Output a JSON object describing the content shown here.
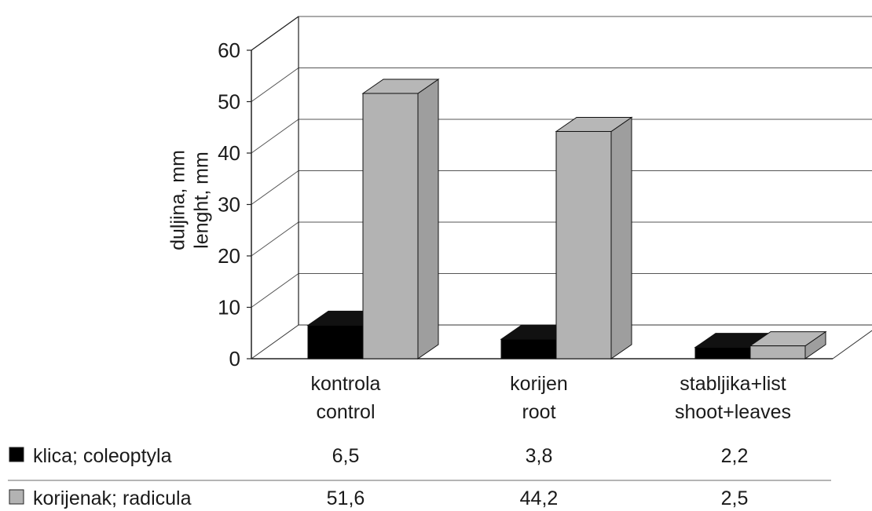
{
  "chart_data": {
    "type": "bar",
    "three_d": true,
    "ylabel": [
      "duljina, mm",
      "lenght, mm"
    ],
    "ylim": [
      0,
      60
    ],
    "yticks": [
      0,
      10,
      20,
      30,
      40,
      50,
      60
    ],
    "grid": true,
    "legend": "data-table-below",
    "categories": [
      [
        "kontrola",
        "control"
      ],
      [
        "korijen",
        "root"
      ],
      [
        "stabljika+list",
        "shoot+leaves"
      ]
    ],
    "series": [
      {
        "name": "klica; coleoptyla",
        "color": "#000000",
        "values": [
          6.5,
          3.8,
          2.2
        ],
        "labels": [
          "6,5",
          "3,8",
          "2,2"
        ]
      },
      {
        "name": "korijenak; radicula",
        "color": "#b3b3b3",
        "values": [
          51.6,
          44.2,
          2.5
        ],
        "labels": [
          "51,6",
          "44,2",
          "2,5"
        ]
      }
    ]
  }
}
